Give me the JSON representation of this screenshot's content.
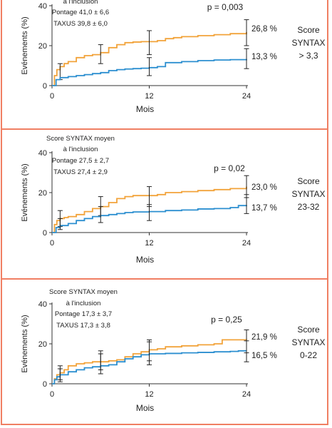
{
  "colors": {
    "pontage": "#f2a33a",
    "taxus": "#2c8fd0",
    "frame": "#f07f63"
  },
  "chart_data": [
    {
      "type": "line",
      "xlabel": "Mois",
      "ylabel": "Evénements (%)",
      "xlim": [
        0,
        24
      ],
      "ylim": [
        0,
        40
      ],
      "xticks": [
        "0",
        "12",
        "24"
      ],
      "yticks": [
        "0",
        "20",
        "40"
      ],
      "info_lines": [
        "à l'inclusion",
        "Pontage 41,0 ± 6,6",
        "TAXUS 39,8 ± 6,0"
      ],
      "pvalue": "p = 0,003",
      "score_lines": [
        "Score",
        "SYNTAX",
        "> 3,3"
      ],
      "series": [
        {
          "label": "26,8 %",
          "color": "#f2a33a",
          "x": [
            0,
            0.3,
            0.6,
            1,
            1.5,
            2,
            3,
            4,
            5,
            6,
            7,
            8,
            9,
            10,
            11,
            12,
            13,
            14,
            15,
            16,
            18,
            20,
            22,
            24
          ],
          "y": [
            0,
            5,
            8,
            9.5,
            11,
            12,
            14,
            15,
            15.5,
            16.5,
            19,
            20.5,
            21.5,
            21.8,
            22,
            22,
            22.5,
            23.5,
            24,
            24.5,
            25,
            25.5,
            26,
            26.8
          ],
          "err": [
            {
              "x": 1,
              "lo": 3,
              "hi": 11
            },
            {
              "x": 6,
              "lo": 11,
              "hi": 20.5
            },
            {
              "x": 12,
              "lo": 15.5,
              "hi": 27.5
            },
            {
              "x": 24,
              "lo": 20,
              "hi": 33
            }
          ]
        },
        {
          "label": "13,3 %",
          "color": "#2c8fd0",
          "x": [
            0,
            0.5,
            1,
            2,
            3,
            4,
            5,
            6,
            7,
            8,
            9,
            10,
            11,
            12,
            13,
            14,
            16,
            18,
            20,
            22,
            24
          ],
          "y": [
            0,
            3,
            4,
            4.5,
            5,
            5.5,
            6,
            6.5,
            7.5,
            8,
            8.3,
            8.5,
            8.7,
            9,
            9.5,
            11.5,
            12,
            12.5,
            12.8,
            13,
            13.3
          ],
          "err": [
            {
              "x": 12,
              "lo": 5,
              "hi": 14
            },
            {
              "x": 24,
              "lo": 8.5,
              "hi": 18.5
            }
          ]
        }
      ]
    },
    {
      "type": "line",
      "xlabel": "Mois",
      "ylabel": "Evénements (%)",
      "xlim": [
        0,
        24
      ],
      "ylim": [
        0,
        40
      ],
      "xticks": [
        "0",
        "12",
        "24"
      ],
      "yticks": [
        "0",
        "20",
        "40"
      ],
      "info_lines": [
        "Score SYNTAX moyen",
        "à l'inclusion",
        "Pontage 27,5 ± 2,7",
        "TAXUS 27,4 ± 2,9"
      ],
      "pvalue": "p = 0,02",
      "score_lines": [
        "Score",
        "SYNTAX",
        "23-32"
      ],
      "series": [
        {
          "label": "23,0 %",
          "color": "#f2a33a",
          "x": [
            0,
            0.3,
            0.6,
            1,
            1.5,
            2,
            3,
            4,
            5,
            6,
            7,
            8,
            9,
            10,
            11,
            12,
            13,
            14,
            16,
            18,
            20,
            22,
            24
          ],
          "y": [
            0,
            4,
            6,
            7,
            7.5,
            8,
            9,
            10.5,
            12,
            13,
            15,
            17,
            18,
            18.5,
            18.5,
            18.5,
            19,
            20,
            20.5,
            21,
            21.5,
            22,
            23
          ],
          "err": [
            {
              "x": 1,
              "lo": 3,
              "hi": 11
            },
            {
              "x": 6,
              "lo": 8.5,
              "hi": 18
            },
            {
              "x": 12,
              "lo": 13,
              "hi": 23
            },
            {
              "x": 24,
              "lo": 17.5,
              "hi": 28.5
            }
          ]
        },
        {
          "label": "13,7 %",
          "color": "#2c8fd0",
          "x": [
            0,
            0.5,
            1,
            2,
            3,
            4,
            5,
            6,
            7,
            8,
            9,
            10,
            12,
            14,
            16,
            18,
            20,
            22,
            23,
            24
          ],
          "y": [
            0,
            2.5,
            3.5,
            4.5,
            6,
            7,
            8,
            8.5,
            9,
            9.5,
            10,
            10.3,
            10.5,
            11,
            11.3,
            11.8,
            12,
            12.5,
            13.5,
            13.7
          ],
          "err": [
            {
              "x": 1,
              "lo": 1.5,
              "hi": 7
            },
            {
              "x": 6,
              "lo": 5,
              "hi": 13
            },
            {
              "x": 12,
              "lo": 6,
              "hi": 14
            },
            {
              "x": 24,
              "lo": 9.5,
              "hi": 19
            }
          ]
        }
      ]
    },
    {
      "type": "line",
      "xlabel": "Mois",
      "ylabel": "Evénements (%)",
      "xlim": [
        0,
        24
      ],
      "ylim": [
        0,
        40
      ],
      "xticks": [
        "0",
        "12",
        "24"
      ],
      "yticks": [
        "0",
        "20",
        "40"
      ],
      "info_lines": [
        "Score SYNTAX moyen",
        "à l'inclusion",
        "Pontage 17,3 ± 3,7",
        "TAXUS 17,3 ± 3,8"
      ],
      "pvalue": "p = 0,25",
      "score_lines": [
        "Score",
        "SYNTAX",
        "0-22"
      ],
      "series": [
        {
          "label": "21,9 %",
          "color": "#f2a33a",
          "x": [
            0,
            0.3,
            0.6,
            1,
            1.5,
            2,
            3,
            4,
            5,
            6,
            7,
            8,
            9,
            10,
            11,
            12,
            13,
            14,
            16,
            18,
            20,
            21,
            22,
            24
          ],
          "y": [
            0,
            2.5,
            4.5,
            5.5,
            7,
            9,
            10,
            10.5,
            11,
            11,
            11.5,
            12,
            13.5,
            15,
            16,
            17,
            17.5,
            18.5,
            19,
            19.5,
            20,
            22,
            22,
            21.9
          ],
          "err": [
            {
              "x": 1,
              "lo": 2,
              "hi": 9
            },
            {
              "x": 6,
              "lo": 7,
              "hi": 16.5
            },
            {
              "x": 12,
              "lo": 11.5,
              "hi": 22
            },
            {
              "x": 24,
              "lo": 15.5,
              "hi": 27
            }
          ]
        },
        {
          "label": "16,5 %",
          "color": "#2c8fd0",
          "x": [
            0,
            0.3,
            0.6,
            1,
            2,
            3,
            4,
            5,
            6,
            7,
            8,
            9,
            10,
            11,
            12,
            14,
            16,
            18,
            20,
            22,
            23,
            24
          ],
          "y": [
            0,
            2,
            3.5,
            4.5,
            6,
            7,
            8,
            8.5,
            9,
            9.5,
            11,
            12.5,
            13.5,
            14.5,
            15,
            15.2,
            15.5,
            15.7,
            16,
            16.2,
            16.5,
            16.5
          ],
          "err": [
            {
              "x": 1,
              "lo": 1,
              "hi": 7.5
            },
            {
              "x": 6,
              "lo": 5,
              "hi": 15
            },
            {
              "x": 12,
              "lo": 9.5,
              "hi": 21
            },
            {
              "x": 24,
              "lo": 11,
              "hi": 21.5
            }
          ]
        }
      ]
    }
  ]
}
